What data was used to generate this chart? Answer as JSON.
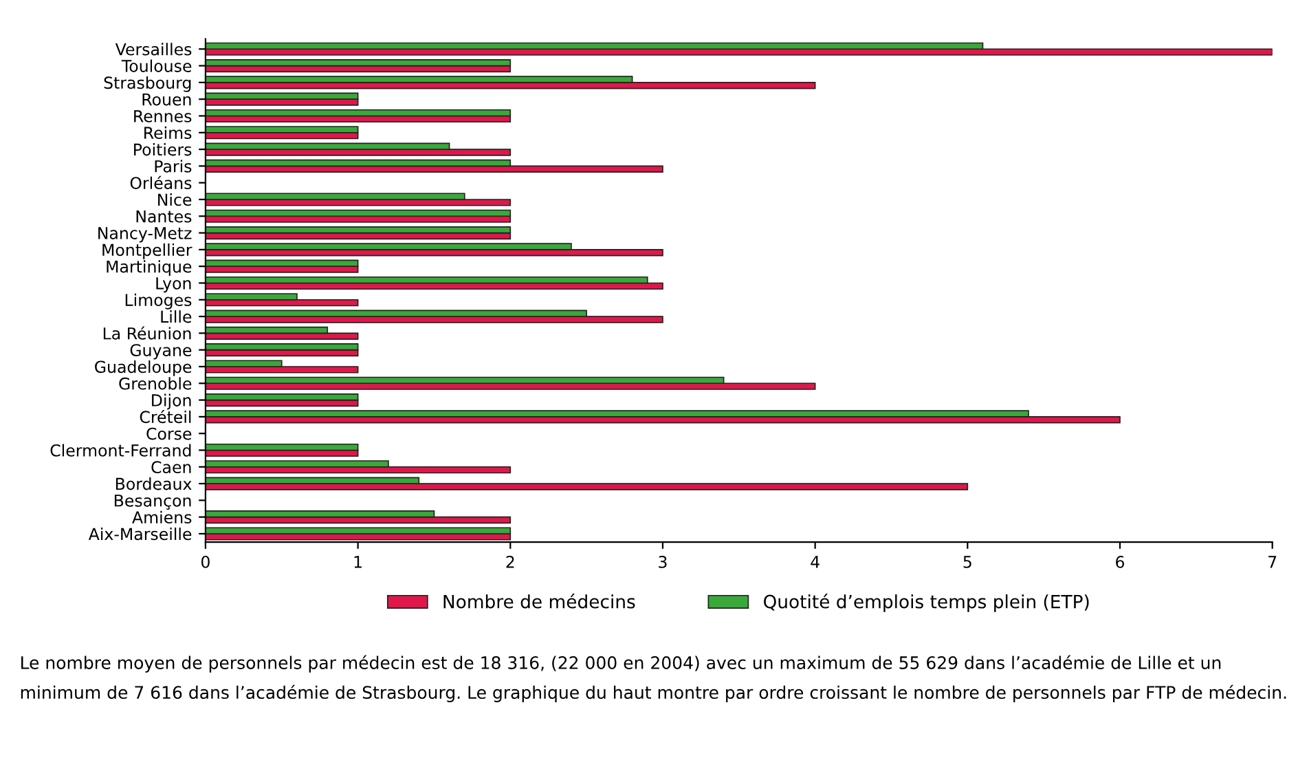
{
  "chart_data": {
    "type": "bar",
    "orientation": "horizontal",
    "categories": [
      "Versailles",
      "Toulouse",
      "Strasbourg",
      "Rouen",
      "Rennes",
      "Reims",
      "Poitiers",
      "Paris",
      "Orléans",
      "Nice",
      "Nantes",
      "Nancy-Metz",
      "Montpellier",
      "Martinique",
      "Lyon",
      "Limoges",
      "Lille",
      "La Réunion",
      "Guyane",
      "Guadeloupe",
      "Grenoble",
      "Dijon",
      "Créteil",
      "Corse",
      "Clermont-Ferrand",
      "Caen",
      "Bordeaux",
      "Besançon",
      "Amiens",
      "Aix-Marseille"
    ],
    "series": [
      {
        "name": "Nombre de médecins",
        "color": "#e0174a",
        "values": [
          7,
          2,
          4,
          1,
          2,
          1,
          2,
          3,
          null,
          2,
          2,
          2,
          3,
          1,
          3,
          1,
          3,
          1,
          1,
          1,
          4,
          1,
          6,
          null,
          1,
          2,
          5,
          null,
          2,
          2
        ]
      },
      {
        "name": "Quotité d’emplois temps plein (ETP)",
        "color": "#3aa83a",
        "values": [
          5.1,
          2,
          2.8,
          1,
          2,
          1,
          1.6,
          2,
          null,
          1.7,
          2,
          2,
          2.4,
          1,
          2.9,
          0.6,
          2.5,
          0.8,
          1,
          0.5,
          3.4,
          1,
          5.4,
          null,
          1,
          1.2,
          1.4,
          null,
          1.5,
          2
        ]
      }
    ],
    "xlim": [
      0,
      7
    ],
    "xticks": [
      0,
      1,
      2,
      3,
      4,
      5,
      6,
      7
    ],
    "grid": false,
    "legend": "bottom",
    "annotations": [
      "Le nombre moyen de personnels par médecin est de 18 316, (22 000 en 2004) avec un maximum de 55 629 dans l’académie de Lille et un minimum de 7 616 dans l’académie de Strasbourg. Le graphique du haut montre par ordre croissant le nombre de personnels par FTP de médecin."
    ]
  }
}
